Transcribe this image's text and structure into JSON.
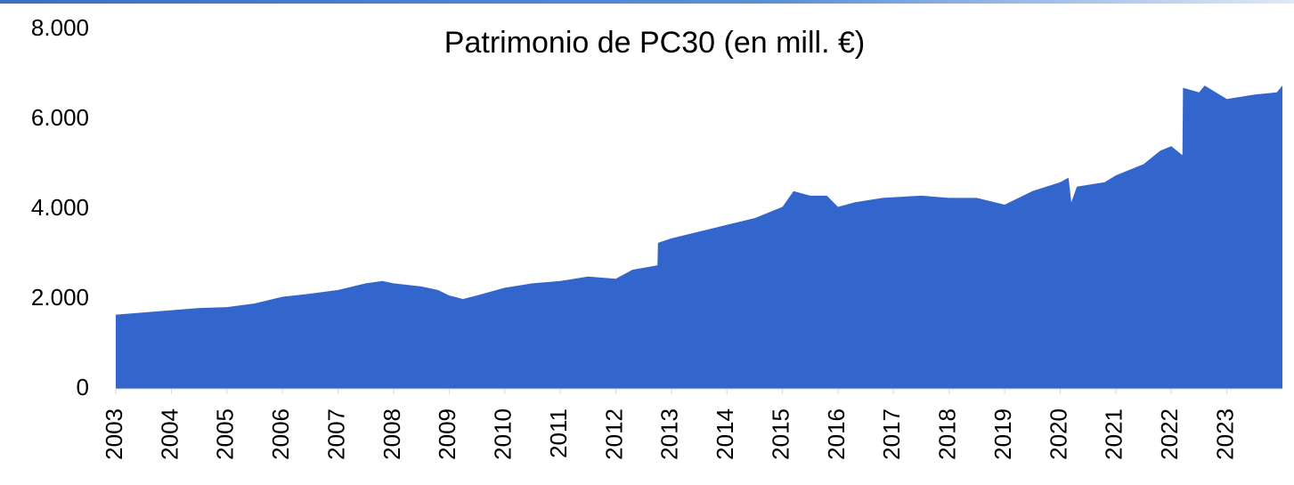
{
  "chart_data": {
    "type": "area",
    "title": "Patrimonio de PC30 (en mill. €)",
    "x": [
      2003.0,
      2003.5,
      2004.0,
      2004.5,
      2005.0,
      2005.5,
      2006.0,
      2006.5,
      2007.0,
      2007.5,
      2007.8,
      2008.0,
      2008.5,
      2008.8,
      2009.0,
      2009.25,
      2009.5,
      2010.0,
      2010.5,
      2011.0,
      2011.5,
      2012.0,
      2012.3,
      2012.75,
      2012.76,
      2013.0,
      2013.5,
      2014.0,
      2014.5,
      2015.0,
      2015.2,
      2015.5,
      2015.8,
      2016.0,
      2016.3,
      2016.8,
      2017.5,
      2018.0,
      2018.5,
      2019.0,
      2019.5,
      2020.0,
      2020.15,
      2020.2,
      2020.3,
      2020.8,
      2021.0,
      2021.5,
      2021.8,
      2022.0,
      2022.2,
      2022.21,
      2022.5,
      2022.6,
      2023.0,
      2023.5,
      2023.9,
      2024.0
    ],
    "values": [
      1650,
      1700,
      1750,
      1800,
      1820,
      1900,
      2050,
      2120,
      2200,
      2350,
      2400,
      2350,
      2280,
      2200,
      2080,
      2000,
      2080,
      2250,
      2350,
      2400,
      2500,
      2450,
      2650,
      2750,
      3250,
      3350,
      3500,
      3650,
      3800,
      4050,
      4400,
      4300,
      4300,
      4050,
      4150,
      4250,
      4300,
      4250,
      4250,
      4100,
      4400,
      4600,
      4700,
      4150,
      4500,
      4600,
      4750,
      5000,
      5300,
      5400,
      5200,
      6700,
      6600,
      6750,
      6450,
      6550,
      6600,
      6750
    ],
    "color": "#3366cc",
    "xlim": [
      2003,
      2024
    ],
    "xticks": [
      2003,
      2004,
      2005,
      2006,
      2007,
      2008,
      2009,
      2010,
      2011,
      2012,
      2013,
      2014,
      2015,
      2016,
      2017,
      2018,
      2019,
      2020,
      2021,
      2022,
      2023
    ],
    "ylim": [
      0,
      8000
    ],
    "yticks": [
      0,
      {
        "value": 2000,
        "label": "2.000"
      },
      {
        "value": 4000,
        "label": "4.000"
      },
      {
        "value": 6000,
        "label": "6.000"
      },
      {
        "value": 8000,
        "label": "8.000"
      }
    ],
    "grid": false
  }
}
